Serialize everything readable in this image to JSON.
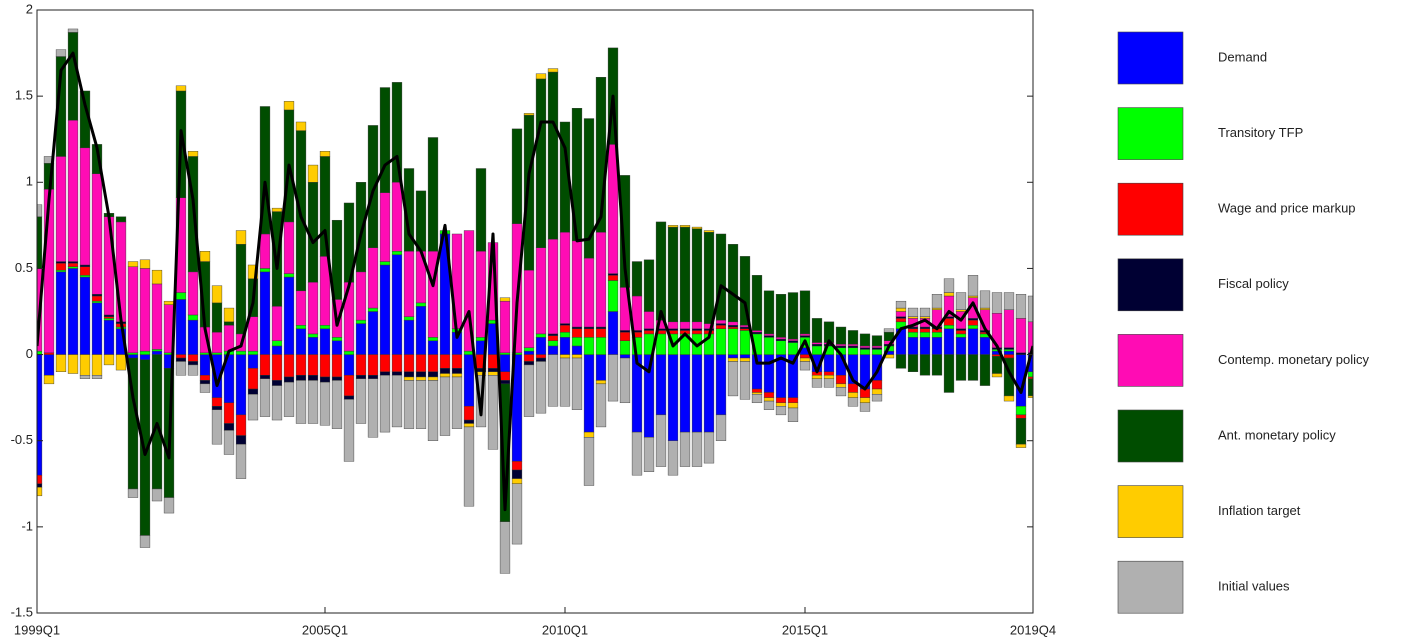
{
  "chart_data": {
    "type": "stacked-bar-line",
    "categories": [
      "1999Q1",
      null,
      null,
      null,
      null,
      null,
      null,
      null,
      null,
      null,
      null,
      null,
      null,
      null,
      null,
      null,
      null,
      null,
      null,
      null,
      null,
      null,
      null,
      null,
      "2005Q1",
      null,
      null,
      null,
      null,
      null,
      null,
      null,
      null,
      null,
      null,
      null,
      null,
      null,
      null,
      null,
      null,
      null,
      null,
      null,
      "2010Q1",
      null,
      null,
      null,
      null,
      null,
      null,
      null,
      null,
      null,
      null,
      null,
      null,
      null,
      null,
      null,
      null,
      null,
      null,
      null,
      "2015Q1",
      null,
      null,
      null,
      null,
      null,
      null,
      null,
      null,
      null,
      null,
      null,
      null,
      null,
      null,
      null,
      null,
      null,
      null,
      "2019Q4"
    ],
    "ylim": [
      -1.5,
      2
    ],
    "yticks": [
      -1.5,
      -1,
      -0.5,
      0,
      0.5,
      1,
      1.5,
      2
    ],
    "grid": false,
    "legend": "right",
    "series": [
      {
        "name": "Demand",
        "color": "#0000ff",
        "values": [
          -0.7,
          -0.12,
          0.48,
          0.5,
          0.45,
          0.3,
          0.2,
          0.15,
          -0.02,
          -0.03,
          0.02,
          -0.08,
          0.32,
          0.2,
          -0.12,
          -0.25,
          -0.28,
          -0.35,
          -0.08,
          0.48,
          0.05,
          0.45,
          0.15,
          0.1,
          0.15,
          0.08,
          -0.12,
          0.18,
          0.25,
          0.52,
          0.58,
          0.2,
          0.28,
          0.08,
          0.7,
          0.13,
          -0.3,
          0.08,
          0.18,
          -0.1,
          -0.62,
          0.02,
          0.1,
          0.05,
          0.1,
          0.05,
          -0.45,
          -0.15,
          0.25,
          -0.02,
          -0.45,
          -0.48,
          -0.35,
          -0.5,
          -0.45,
          -0.45,
          -0.45,
          -0.35,
          -0.02,
          -0.02,
          -0.2,
          -0.22,
          -0.25,
          -0.25,
          0.04,
          -0.1,
          -0.1,
          -0.12,
          -0.17,
          -0.2,
          -0.15,
          0.02,
          0.15,
          0.1,
          0.1,
          0.1,
          0.15,
          0.1,
          0.15,
          0.1,
          0.02,
          0.02,
          -0.3,
          -0.1
        ]
      },
      {
        "name": "Transitory TFP",
        "color": "#00ff00",
        "values": [
          0.02,
          0,
          0.01,
          0.01,
          0.01,
          0.01,
          0.01,
          0.01,
          0.01,
          0.02,
          0.01,
          0.01,
          0.04,
          0.03,
          0.01,
          0.01,
          0.02,
          0.02,
          0.02,
          0.02,
          0.03,
          0.02,
          0.02,
          0.02,
          0.02,
          0.02,
          0.02,
          0.02,
          0.02,
          0.02,
          0.02,
          0.02,
          0.02,
          0.02,
          0.02,
          0.02,
          0.02,
          0.02,
          0.02,
          0.01,
          0.01,
          0.02,
          0.02,
          0.03,
          0.03,
          0.05,
          0.1,
          0.1,
          0.18,
          0.08,
          0.1,
          0.12,
          0.12,
          0.12,
          0.12,
          0.12,
          0.12,
          0.15,
          0.15,
          0.14,
          0.12,
          0.1,
          0.08,
          0.07,
          0.06,
          0.05,
          0.05,
          0.04,
          0.04,
          0.03,
          0.03,
          0.03,
          0.04,
          0.03,
          0.03,
          0.03,
          0.02,
          0.02,
          0.02,
          0.02,
          0.01,
          0.01,
          -0.05,
          -0.03
        ]
      },
      {
        "name": "Wage and price markup",
        "color": "#ff0000",
        "values": [
          -0.05,
          0.01,
          0.04,
          0.02,
          0.05,
          0.03,
          0.01,
          0.02,
          0,
          0,
          0,
          0,
          -0.02,
          -0.04,
          -0.03,
          -0.05,
          -0.12,
          -0.12,
          -0.12,
          -0.12,
          -0.15,
          -0.13,
          -0.12,
          -0.12,
          -0.13,
          -0.13,
          -0.12,
          -0.12,
          -0.12,
          -0.1,
          -0.1,
          -0.1,
          -0.1,
          -0.1,
          -0.08,
          -0.08,
          -0.08,
          -0.08,
          -0.08,
          -0.05,
          -0.05,
          -0.04,
          -0.02,
          0.03,
          0.04,
          0.05,
          0.05,
          0.05,
          0.03,
          0.05,
          0.03,
          0.02,
          0.02,
          0.02,
          0.02,
          0.02,
          0.02,
          0.02,
          0.01,
          0.01,
          -0.02,
          -0.03,
          -0.03,
          -0.03,
          -0.02,
          -0.02,
          -0.02,
          -0.05,
          -0.05,
          -0.05,
          -0.05,
          0,
          0.02,
          0.02,
          0.02,
          0.02,
          0.04,
          0.02,
          0.03,
          0.01,
          -0.01,
          -0.02,
          -0.02,
          -0.01
        ]
      },
      {
        "name": "Fiscal policy",
        "color": "#000033",
        "values": [
          -0.02,
          0,
          0.01,
          0.01,
          0.01,
          0.01,
          0.01,
          0.01,
          0,
          0,
          0,
          0,
          -0.02,
          -0.02,
          -0.02,
          -0.02,
          -0.04,
          -0.05,
          -0.03,
          -0.02,
          -0.03,
          -0.03,
          -0.03,
          -0.03,
          -0.03,
          -0.02,
          -0.02,
          -0.02,
          -0.02,
          -0.02,
          -0.02,
          -0.03,
          -0.03,
          -0.03,
          -0.03,
          -0.03,
          -0.02,
          -0.02,
          -0.02,
          -0.02,
          -0.05,
          -0.02,
          -0.02,
          0.01,
          0.01,
          0.01,
          0.01,
          0.01,
          0.01,
          0.01,
          0.01,
          0.01,
          0.01,
          0.01,
          0.01,
          0.01,
          0.01,
          0.01,
          0.01,
          0.01,
          0.01,
          0.01,
          0.01,
          0.01,
          0.01,
          0.01,
          0.01,
          0.01,
          0.01,
          0.01,
          0.01,
          0.01,
          0.01,
          0.01,
          0.01,
          0.01,
          0.01,
          0.01,
          0.01,
          0.01,
          0.01,
          0.01,
          0.01,
          0.01
        ]
      },
      {
        "name": "Contemp. monetary policy",
        "color": "#ff0cb4",
        "values": [
          0.48,
          0.95,
          0.61,
          0.82,
          0.68,
          0.7,
          0.57,
          0.58,
          0.5,
          0.48,
          0.38,
          0.28,
          0.55,
          0.25,
          0.15,
          0.12,
          0.15,
          0.1,
          0.2,
          0.2,
          0.2,
          0.3,
          0.2,
          0.3,
          0.4,
          0.22,
          0.4,
          0.28,
          0.35,
          0.4,
          0.4,
          0.38,
          0.3,
          0.5,
          0,
          0.55,
          0.7,
          0.5,
          0.45,
          0.3,
          0.75,
          0.45,
          0.5,
          0.55,
          0.53,
          0.5,
          0.4,
          0.55,
          0.75,
          0.25,
          0.2,
          0.1,
          0.05,
          0.04,
          0.04,
          0.04,
          0.03,
          0.02,
          0.02,
          0.01,
          0.01,
          0.01,
          0.01,
          0.01,
          0.01,
          0.01,
          0.01,
          0.01,
          0.01,
          0.01,
          0.01,
          0.02,
          0.03,
          0.05,
          0.05,
          0.1,
          0.12,
          0.1,
          0.12,
          0.12,
          0.2,
          0.22,
          0.2,
          0.18
        ]
      },
      {
        "name": "Ant. monetary policy",
        "color": "#004d00",
        "values": [
          0.3,
          0.15,
          0.58,
          0.51,
          0.33,
          0.17,
          0.02,
          0.03,
          -0.76,
          -1.02,
          -0.78,
          -0.75,
          0.62,
          0.67,
          0.38,
          0.17,
          0.02,
          0.52,
          0.22,
          0.74,
          0.55,
          0.65,
          0.93,
          0.58,
          0.58,
          0.46,
          0.46,
          0.52,
          0.71,
          0.61,
          0.58,
          0.48,
          0.35,
          0.66,
          0,
          0,
          0,
          0.48,
          0,
          -0.8,
          0.55,
          0.9,
          0.98,
          0.97,
          0.64,
          0.77,
          0.81,
          0.9,
          0.56,
          0.65,
          0.2,
          0.3,
          0.57,
          0.55,
          0.55,
          0.54,
          0.53,
          0.5,
          0.45,
          0.4,
          0.32,
          0.25,
          0.25,
          0.27,
          0.25,
          0.14,
          0.12,
          0.1,
          0.08,
          0.07,
          0.06,
          0.05,
          -0.08,
          -0.1,
          -0.12,
          -0.12,
          -0.22,
          -0.15,
          -0.15,
          -0.18,
          -0.1,
          -0.22,
          -0.15,
          -0.1
        ]
      },
      {
        "name": "Inflation target",
        "color": "#ffcc00",
        "values": [
          -0.05,
          -0.05,
          -0.1,
          -0.11,
          -0.12,
          -0.12,
          -0.06,
          -0.09,
          0.03,
          0.05,
          0.08,
          0.02,
          0.03,
          0.03,
          0.06,
          0.1,
          0.08,
          0.08,
          0.08,
          0,
          0.02,
          0.05,
          0.05,
          0.1,
          0.03,
          0,
          0,
          0,
          0,
          0,
          0,
          -0.02,
          -0.02,
          -0.02,
          -0.02,
          -0.02,
          -0.02,
          -0.02,
          -0.02,
          0.02,
          -0.03,
          0.01,
          0.03,
          0.02,
          -0.02,
          -0.02,
          -0.03,
          -0.02,
          0,
          0,
          0,
          0,
          0,
          0.01,
          0.01,
          0.01,
          0.01,
          0,
          -0.02,
          -0.02,
          -0.01,
          -0.02,
          -0.02,
          -0.03,
          -0.02,
          -0.02,
          -0.02,
          -0.02,
          -0.03,
          -0.03,
          -0.03,
          -0.02,
          0.02,
          0.01,
          0.01,
          0.01,
          0.02,
          0.01,
          0.01,
          0.01,
          -0.02,
          -0.03,
          -0.02,
          -0.01
        ]
      },
      {
        "name": "Initial values",
        "color": "#b0b0b0",
        "values": [
          0.07,
          0.04,
          0.04,
          0.02,
          -0.02,
          -0.02,
          0,
          0,
          -0.05,
          -0.07,
          -0.07,
          -0.09,
          -0.08,
          -0.06,
          -0.05,
          -0.2,
          -0.14,
          -0.2,
          -0.15,
          -0.22,
          -0.2,
          -0.2,
          -0.25,
          -0.25,
          -0.25,
          -0.28,
          -0.36,
          -0.26,
          -0.34,
          -0.33,
          -0.3,
          -0.28,
          -0.28,
          -0.35,
          -0.34,
          -0.3,
          -0.46,
          -0.3,
          -0.43,
          -0.3,
          -0.35,
          -0.3,
          -0.3,
          -0.3,
          -0.28,
          -0.3,
          -0.28,
          -0.25,
          -0.27,
          -0.26,
          -0.25,
          -0.2,
          -0.3,
          -0.2,
          -0.2,
          -0.2,
          -0.18,
          -0.15,
          -0.2,
          -0.22,
          -0.05,
          -0.05,
          -0.05,
          -0.08,
          -0.05,
          -0.05,
          -0.05,
          -0.05,
          -0.05,
          -0.05,
          -0.04,
          0.02,
          0.04,
          0.05,
          0.05,
          0.08,
          0.08,
          0.1,
          0.12,
          0.1,
          0.12,
          0.1,
          0.14,
          0.15
        ]
      }
    ],
    "line": {
      "color": "#000000",
      "values": [
        0.05,
        0.9,
        1.65,
        1.75,
        1.45,
        1.2,
        0.8,
        0.2,
        -0.25,
        -0.58,
        -0.4,
        -0.6,
        1.3,
        0.9,
        0.15,
        -0.18,
        0.02,
        0.05,
        0.3,
        1.0,
        0.5,
        1.1,
        0.8,
        0.65,
        0.72,
        0.17,
        0.4,
        0.7,
        0.95,
        1.1,
        1.15,
        0.7,
        0.6,
        0.4,
        0.75,
        0.1,
        0.25,
        -0.35,
        0.7,
        -0.9,
        0.3,
        1.05,
        1.35,
        1.35,
        1.2,
        0.66,
        0.67,
        0.8,
        1.5,
        0.5,
        -0.05,
        -0.1,
        0.25,
        0.05,
        0.12,
        0.05,
        0.1,
        0.4,
        0.35,
        0.3,
        -0.05,
        -0.05,
        -0.02,
        -0.05,
        0.08,
        -0.1,
        0.08,
        0,
        -0.15,
        -0.2,
        -0.1,
        0.05,
        0.15,
        0.17,
        0.2,
        0.15,
        0.25,
        0.2,
        0.3,
        0.15,
        0.05,
        -0.1,
        -0.22,
        0.05
      ]
    }
  }
}
